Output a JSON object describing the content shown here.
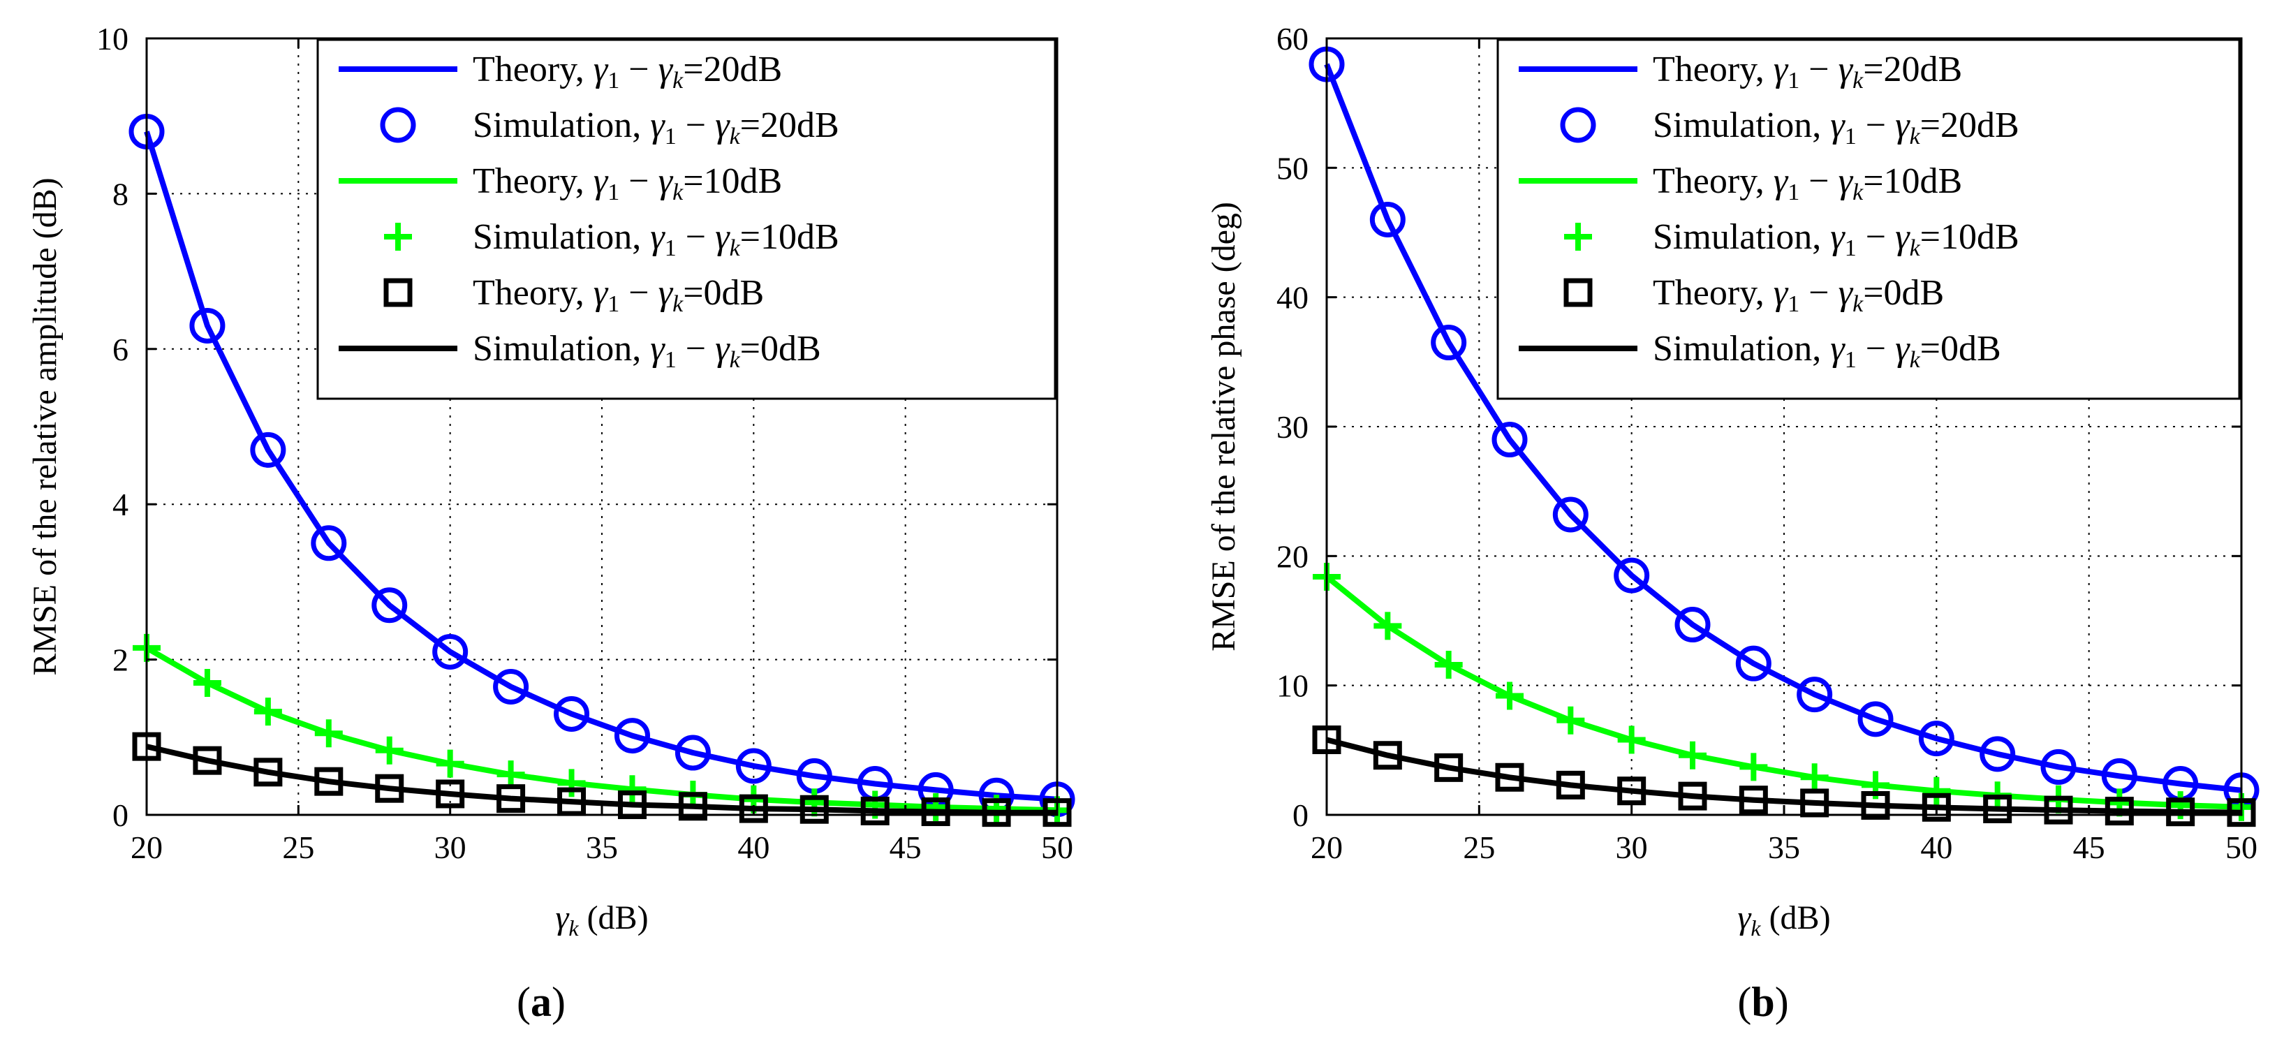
{
  "chart_data": [
    {
      "type": "line",
      "caption": "(a)",
      "caption_letter": "a",
      "xlabel": "γk (dB)",
      "ylabel": "RMSE of the relative amplitude (dB)",
      "xlim": [
        20,
        50
      ],
      "ylim": [
        0,
        10
      ],
      "xticks": [
        "20",
        "25",
        "30",
        "35",
        "40",
        "45",
        "50"
      ],
      "yticks": [
        "0",
        "2",
        "4",
        "6",
        "8",
        "10"
      ],
      "grid": true,
      "legend_position": "top-right",
      "x": [
        20,
        22,
        24,
        26,
        28,
        30,
        32,
        34,
        36,
        38,
        40,
        42,
        44,
        46,
        48,
        50
      ],
      "series": [
        {
          "name": "Theory, γ1 − γk=20dB",
          "style": "line",
          "color": "#0000ff",
          "values": [
            8.8,
            6.3,
            4.7,
            3.5,
            2.7,
            2.1,
            1.65,
            1.3,
            1.02,
            0.8,
            0.63,
            0.5,
            0.4,
            0.32,
            0.25,
            0.2
          ]
        },
        {
          "name": "Simulation, γ1 − γk=20dB",
          "style": "circle",
          "color": "#0000ff",
          "values": [
            8.8,
            6.3,
            4.7,
            3.5,
            2.7,
            2.1,
            1.65,
            1.3,
            1.02,
            0.8,
            0.63,
            0.5,
            0.4,
            0.32,
            0.25,
            0.2
          ]
        },
        {
          "name": "Theory, γ1 − γk=10dB",
          "style": "line",
          "color": "#00ff00",
          "values": [
            2.15,
            1.7,
            1.33,
            1.05,
            0.83,
            0.66,
            0.52,
            0.41,
            0.33,
            0.26,
            0.2,
            0.16,
            0.13,
            0.1,
            0.08,
            0.06
          ]
        },
        {
          "name": "Simulation, γ1 − γk=10dB",
          "style": "plus",
          "color": "#00ff00",
          "values": [
            2.15,
            1.7,
            1.33,
            1.05,
            0.83,
            0.66,
            0.52,
            0.41,
            0.33,
            0.26,
            0.2,
            0.16,
            0.13,
            0.1,
            0.08,
            0.06
          ]
        },
        {
          "name": "Theory, γ1 − γk=0dB",
          "style": "square",
          "color": "#000000",
          "values": [
            0.88,
            0.7,
            0.55,
            0.43,
            0.34,
            0.27,
            0.21,
            0.17,
            0.13,
            0.11,
            0.08,
            0.07,
            0.05,
            0.04,
            0.03,
            0.03
          ]
        },
        {
          "name": "Simulation, γ1 − γk=0dB",
          "style": "line",
          "color": "#000000",
          "values": [
            0.88,
            0.7,
            0.55,
            0.43,
            0.34,
            0.27,
            0.21,
            0.17,
            0.13,
            0.11,
            0.08,
            0.07,
            0.05,
            0.04,
            0.03,
            0.03
          ]
        }
      ]
    },
    {
      "type": "line",
      "caption": "(b)",
      "caption_letter": "b",
      "xlabel": "γk (dB)",
      "ylabel": "RMSE of the relative phase (deg)",
      "xlim": [
        20,
        50
      ],
      "ylim": [
        0,
        60
      ],
      "xticks": [
        "20",
        "25",
        "30",
        "35",
        "40",
        "45",
        "50"
      ],
      "yticks": [
        "0",
        "10",
        "20",
        "30",
        "40",
        "50",
        "60"
      ],
      "grid": true,
      "legend_position": "top-right",
      "x": [
        20,
        22,
        24,
        26,
        28,
        30,
        32,
        34,
        36,
        38,
        40,
        42,
        44,
        46,
        48,
        50
      ],
      "series": [
        {
          "name": "Theory, γ1 − γk=20dB",
          "style": "line",
          "color": "#0000ff",
          "values": [
            58,
            46,
            36.5,
            29,
            23.2,
            18.5,
            14.7,
            11.7,
            9.3,
            7.4,
            5.9,
            4.7,
            3.7,
            3.0,
            2.4,
            1.9
          ]
        },
        {
          "name": "Simulation, γ1 − γk=20dB",
          "style": "circle",
          "color": "#0000ff",
          "values": [
            58,
            46,
            36.5,
            29,
            23.2,
            18.5,
            14.7,
            11.7,
            9.3,
            7.4,
            5.9,
            4.7,
            3.7,
            3.0,
            2.4,
            1.9
          ]
        },
        {
          "name": "Theory, γ1 − γk=10dB",
          "style": "line",
          "color": "#00ff00",
          "values": [
            18.4,
            14.6,
            11.6,
            9.2,
            7.3,
            5.8,
            4.6,
            3.7,
            2.9,
            2.3,
            1.85,
            1.5,
            1.2,
            0.95,
            0.75,
            0.6
          ]
        },
        {
          "name": "Simulation, γ1 − γk=10dB",
          "style": "plus",
          "color": "#00ff00",
          "values": [
            18.4,
            14.6,
            11.6,
            9.2,
            7.3,
            5.8,
            4.6,
            3.7,
            2.9,
            2.3,
            1.85,
            1.5,
            1.2,
            0.95,
            0.75,
            0.6
          ]
        },
        {
          "name": "Theory, γ1 − γk=0dB",
          "style": "square",
          "color": "#000000",
          "values": [
            5.8,
            4.6,
            3.65,
            2.9,
            2.3,
            1.85,
            1.45,
            1.15,
            0.92,
            0.73,
            0.58,
            0.46,
            0.37,
            0.29,
            0.23,
            0.18
          ]
        },
        {
          "name": "Simulation, γ1 − γk=0dB",
          "style": "line",
          "color": "#000000",
          "values": [
            5.8,
            4.6,
            3.65,
            2.9,
            2.3,
            1.85,
            1.45,
            1.15,
            0.92,
            0.73,
            0.58,
            0.46,
            0.37,
            0.29,
            0.23,
            0.18
          ]
        }
      ]
    }
  ]
}
